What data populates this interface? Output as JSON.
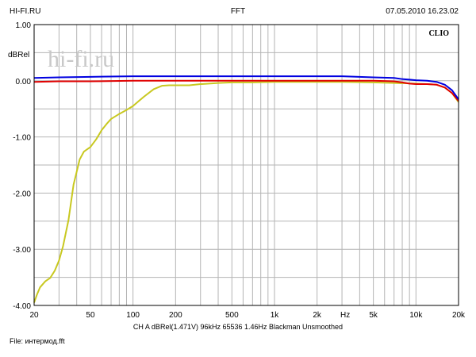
{
  "header": {
    "left": "HI-FI.RU",
    "center": "FFT",
    "right": "07.05.2010 16.23.02"
  },
  "brand": {
    "clio": "CLIO",
    "watermark": "hi-fi.ru"
  },
  "footer": {
    "settings": "CH A   dBRel(1.471V)   96kHz   65536   1.46Hz   Blackman   Unsmoothed",
    "file": "File: интермод.fft"
  },
  "chart_data": {
    "type": "line",
    "title": "",
    "xlabel": "Hz",
    "ylabel": "dBRel",
    "xscale": "log",
    "xlim": [
      20,
      20000
    ],
    "ylim": [
      -4.0,
      1.0
    ],
    "grid": true,
    "x_tick_labels": [
      {
        "v": 20,
        "t": "20"
      },
      {
        "v": 50,
        "t": "50"
      },
      {
        "v": 100,
        "t": "100"
      },
      {
        "v": 200,
        "t": "200"
      },
      {
        "v": 500,
        "t": "500"
      },
      {
        "v": 1000,
        "t": "1k"
      },
      {
        "v": 2000,
        "t": "2k"
      },
      {
        "v": 5000,
        "t": "5k"
      },
      {
        "v": 10000,
        "t": "10k"
      },
      {
        "v": 20000,
        "t": "20k"
      }
    ],
    "y_tick_labels": [
      "1.00",
      "0.00",
      "-1.00",
      "-2.00",
      "-3.00",
      "-4.00"
    ],
    "series": [
      {
        "color": "#0000e0",
        "x": [
          20,
          30,
          50,
          100,
          200,
          500,
          1000,
          2000,
          3000,
          5000,
          7000,
          8000,
          9000,
          10000,
          12000,
          14000,
          16000,
          18000,
          20000
        ],
        "y": [
          0.05,
          0.06,
          0.07,
          0.08,
          0.08,
          0.08,
          0.08,
          0.08,
          0.08,
          0.06,
          0.05,
          0.03,
          0.02,
          0.01,
          0.0,
          -0.02,
          -0.07,
          -0.17,
          -0.33
        ]
      },
      {
        "color": "#e00000",
        "x": [
          20,
          30,
          50,
          100,
          200,
          500,
          1000,
          2000,
          3000,
          5000,
          7000,
          8000,
          9000,
          10000,
          12000,
          14000,
          16000,
          18000,
          20000
        ],
        "y": [
          -0.02,
          -0.01,
          -0.01,
          0.0,
          0.0,
          0.0,
          0.0,
          0.0,
          0.0,
          0.0,
          -0.01,
          -0.03,
          -0.05,
          -0.06,
          -0.06,
          -0.07,
          -0.12,
          -0.22,
          -0.36
        ]
      },
      {
        "color": "#c8c820",
        "x": [
          20,
          21,
          22,
          24,
          26,
          28,
          30,
          32,
          35,
          38,
          42,
          45,
          50,
          55,
          60,
          65,
          70,
          80,
          90,
          100,
          110,
          120,
          140,
          160,
          180,
          200,
          250,
          300,
          400,
          500,
          700,
          1000,
          2000,
          3000,
          5000,
          7000,
          10000,
          12000,
          14000,
          16000,
          18000,
          20000
        ],
        "y": [
          -3.95,
          -3.8,
          -3.68,
          -3.57,
          -3.51,
          -3.38,
          -3.2,
          -2.95,
          -2.48,
          -1.85,
          -1.4,
          -1.26,
          -1.18,
          -1.04,
          -0.88,
          -0.77,
          -0.68,
          -0.59,
          -0.52,
          -0.45,
          -0.36,
          -0.28,
          -0.15,
          -0.09,
          -0.08,
          -0.08,
          -0.08,
          -0.06,
          -0.04,
          -0.03,
          -0.03,
          -0.02,
          -0.02,
          -0.02,
          -0.03,
          -0.04,
          -0.05,
          -0.06,
          -0.07,
          -0.12,
          -0.22,
          -0.38
        ]
      }
    ]
  }
}
